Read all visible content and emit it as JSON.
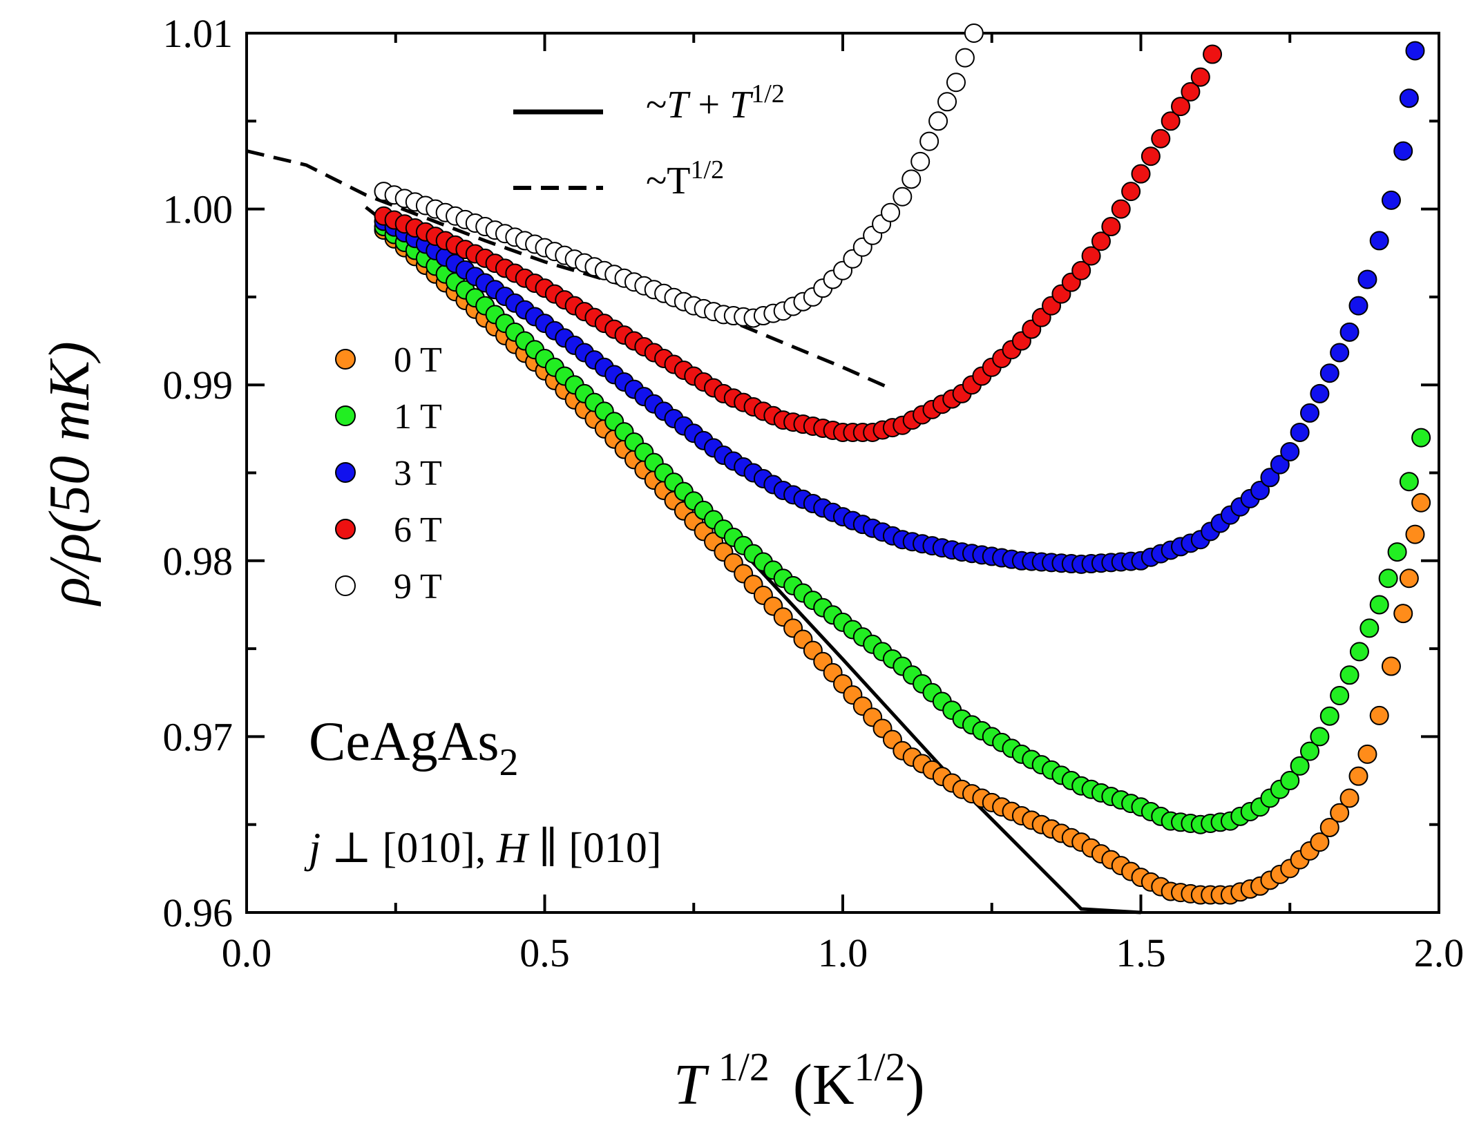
{
  "chart_data": {
    "type": "scatter",
    "title": "",
    "xlabel": {
      "main": "T",
      "sup": "1/2",
      "unit": "(K",
      "unit_sup": "1/2",
      "unit_close": ")"
    },
    "ylabel": {
      "text": "ρ/ρ(50 mK)"
    },
    "xlim": [
      0.0,
      2.0
    ],
    "ylim": [
      0.96,
      1.01
    ],
    "x_ticks": [
      "0.0",
      "0.5",
      "1.0",
      "1.5",
      "2.0"
    ],
    "y_ticks": [
      "0.96",
      "0.97",
      "0.98",
      "0.99",
      "1.00",
      "1.01"
    ],
    "x_tick_values": [
      0.0,
      0.5,
      1.0,
      1.5,
      2.0
    ],
    "y_tick_values": [
      0.96,
      0.97,
      0.98,
      0.99,
      1.0,
      1.01
    ],
    "legend_position": "left-middle",
    "series": [
      {
        "name": "0 T",
        "color": "#ff8c1a",
        "x": [
          0.23,
          0.3,
          0.4,
          0.5,
          0.6,
          0.7,
          0.8,
          0.9,
          1.0,
          1.1,
          1.2,
          1.3,
          1.4,
          1.5,
          1.55,
          1.6,
          1.65,
          1.7,
          1.75,
          1.8,
          1.85,
          1.88,
          1.9,
          1.92,
          1.94,
          1.95,
          1.96,
          1.97
        ],
        "y": [
          0.9988,
          0.9968,
          0.9938,
          0.9908,
          0.9875,
          0.984,
          0.9805,
          0.9768,
          0.973,
          0.9692,
          0.967,
          0.9655,
          0.964,
          0.962,
          0.9612,
          0.961,
          0.961,
          0.9615,
          0.9625,
          0.964,
          0.9665,
          0.969,
          0.9712,
          0.974,
          0.977,
          0.979,
          0.9815,
          0.9833
        ]
      },
      {
        "name": "1 T",
        "color": "#22ee22",
        "x": [
          0.23,
          0.3,
          0.4,
          0.5,
          0.6,
          0.7,
          0.8,
          0.9,
          1.0,
          1.1,
          1.2,
          1.3,
          1.4,
          1.5,
          1.55,
          1.6,
          1.65,
          1.7,
          1.75,
          1.8,
          1.85,
          1.9,
          1.93,
          1.95,
          1.97
        ],
        "y": [
          0.999,
          0.9972,
          0.9945,
          0.9915,
          0.9885,
          0.985,
          0.9818,
          0.979,
          0.9765,
          0.974,
          0.971,
          0.969,
          0.9672,
          0.966,
          0.9652,
          0.965,
          0.9652,
          0.966,
          0.9675,
          0.97,
          0.9735,
          0.9775,
          0.9805,
          0.9845,
          0.987
        ]
      },
      {
        "name": "3 T",
        "color": "#1111ee",
        "x": [
          0.23,
          0.3,
          0.4,
          0.5,
          0.6,
          0.7,
          0.8,
          0.9,
          1.0,
          1.1,
          1.2,
          1.3,
          1.4,
          1.5,
          1.6,
          1.7,
          1.75,
          1.8,
          1.85,
          1.88,
          1.9,
          1.92,
          1.94,
          1.95,
          1.96
        ],
        "y": [
          0.9993,
          0.998,
          0.9958,
          0.9935,
          0.991,
          0.9885,
          0.986,
          0.984,
          0.9825,
          0.9812,
          0.9805,
          0.98,
          0.9798,
          0.98,
          0.9812,
          0.984,
          0.9862,
          0.9895,
          0.993,
          0.996,
          0.9982,
          1.0005,
          1.0033,
          1.0063,
          1.009
        ]
      },
      {
        "name": "6 T",
        "color": "#ee1111",
        "x": [
          0.23,
          0.3,
          0.4,
          0.5,
          0.6,
          0.7,
          0.8,
          0.9,
          1.0,
          1.05,
          1.1,
          1.2,
          1.3,
          1.4,
          1.45,
          1.5,
          1.55,
          1.6,
          1.62
        ],
        "y": [
          0.9996,
          0.9987,
          0.9972,
          0.9955,
          0.9935,
          0.9915,
          0.9895,
          0.988,
          0.9873,
          0.9873,
          0.9877,
          0.9895,
          0.9925,
          0.9965,
          0.999,
          1.002,
          1.005,
          1.0075,
          1.0088
        ]
      },
      {
        "name": "9 T",
        "color": "#ffffff",
        "x": [
          0.23,
          0.3,
          0.4,
          0.5,
          0.6,
          0.7,
          0.75,
          0.8,
          0.85,
          0.9,
          0.95,
          1.0,
          1.05,
          1.08,
          1.1,
          1.13,
          1.16,
          1.19,
          1.22
        ],
        "y": [
          1.001,
          1.0002,
          0.999,
          0.9978,
          0.9965,
          0.9952,
          0.9945,
          0.994,
          0.9938,
          0.9942,
          0.995,
          0.9965,
          0.9985,
          0.9998,
          1.0007,
          1.0027,
          1.005,
          1.0072,
          1.01
        ]
      }
    ],
    "fits": [
      {
        "name": "~T + T^1/2",
        "style": "solid",
        "x": [
          0.2,
          0.4,
          0.6,
          0.8,
          1.0,
          1.2,
          1.4,
          1.5
        ],
        "y": [
          1.0001,
          0.9948,
          0.9886,
          0.9817,
          0.9744,
          0.967,
          0.9602,
          0.96
        ]
      },
      {
        "name": "~T^1/2",
        "style": "dashed",
        "x": [
          0.0,
          0.1,
          0.2,
          0.3,
          0.4,
          0.5,
          0.6,
          0.7,
          0.8,
          0.9,
          1.0,
          1.08
        ],
        "y": [
          1.0033,
          1.0025,
          1.0008,
          0.9995,
          0.9982,
          0.997,
          0.996,
          0.995,
          0.9938,
          0.9924,
          0.991,
          0.9898
        ]
      }
    ],
    "legend": {
      "fit_solid": {
        "prefix": "~",
        "var": "T",
        "mid": " + ",
        "var2": "T",
        "sup": "1/2"
      },
      "fit_dashed": {
        "prefix": "~T",
        "sup": "1/2"
      }
    },
    "annotations": {
      "compound": {
        "base": "CeAgAs",
        "sub": "2"
      },
      "config": {
        "j": "j",
        "perp": " ⊥ [010], ",
        "h": "H",
        "par": " ∥ [010]"
      }
    }
  }
}
